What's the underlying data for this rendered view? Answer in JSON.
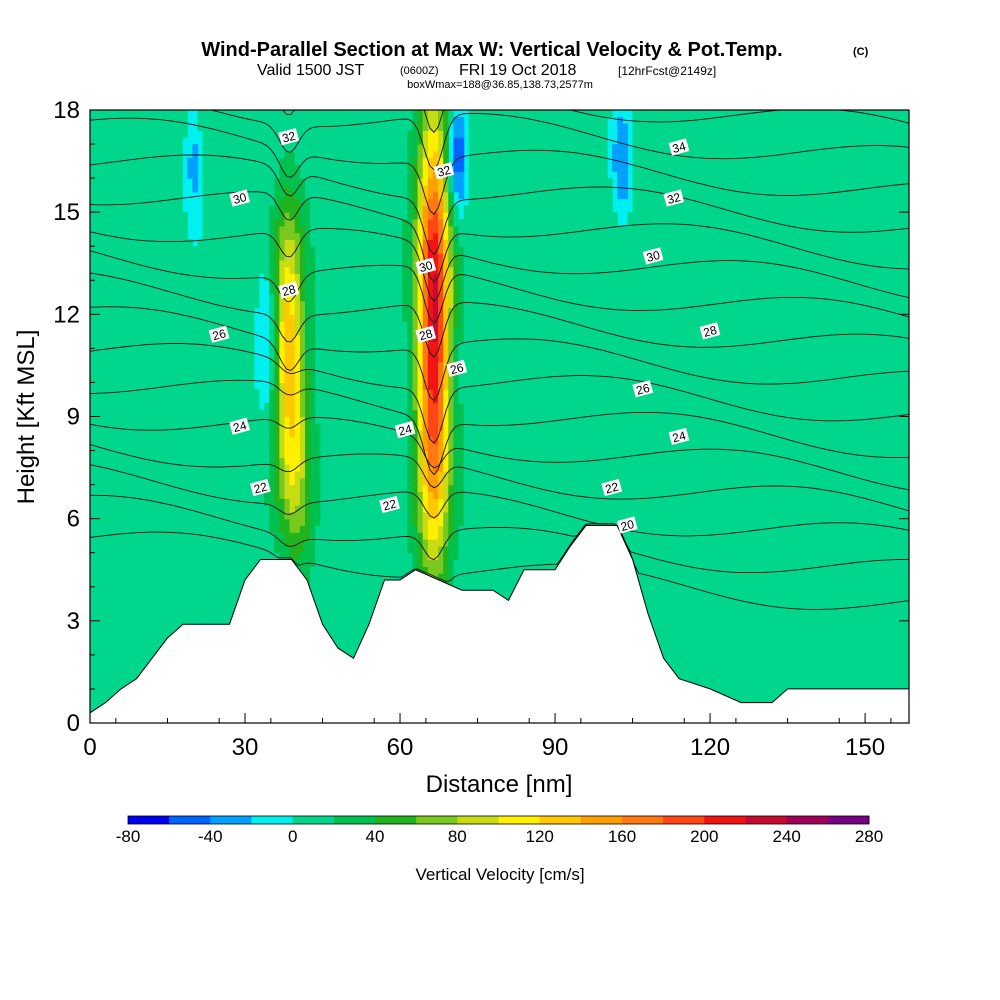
{
  "title": {
    "main": "Wind-Parallel Section at Max W: Vertical Velocity & Pot.Temp.",
    "copyright": "(C)",
    "valid_prefix": "Valid 1500 JST",
    "valid_utc": "(0600Z)",
    "valid_date": "FRI 19 Oct 2018",
    "forecast": "[12hrFcst@2149z]",
    "boxwmax": "boxWmax=188@36.85,138.73,2577m"
  },
  "chart_data": {
    "type": "heatmap",
    "xlabel": "Distance [nm]",
    "ylabel": "Height [Kft MSL]",
    "xlim": [
      0,
      158.5
    ],
    "ylim": [
      0,
      18
    ],
    "x_ticks": [
      0,
      30,
      60,
      90,
      120,
      150
    ],
    "y_ticks": [
      0,
      3,
      6,
      9,
      12,
      15,
      18
    ],
    "grid": false,
    "colorbar": {
      "label": "Vertical Velocity [cm/s]",
      "placement": "bottom",
      "min": -80,
      "max": 280,
      "step": 20,
      "tick_values": [
        -80,
        -40,
        0,
        40,
        80,
        120,
        160,
        200,
        240,
        280
      ],
      "colors": [
        "#0000f0",
        "#0064ff",
        "#00a0ff",
        "#00f0f0",
        "#00d68c",
        "#00c050",
        "#22b41e",
        "#78c81e",
        "#c8dc14",
        "#fff000",
        "#ffc800",
        "#ffa000",
        "#ff7814",
        "#ff4614",
        "#f01414",
        "#c80a32",
        "#a0005a",
        "#780082"
      ]
    },
    "background_value_range": [
      0,
      20
    ],
    "updraft_cores": [
      {
        "x_center": 38.5,
        "z_bottom": 7,
        "z_top": 14.8,
        "peak_w": 135
      },
      {
        "x_center": 66.5,
        "z_bottom": 5.2,
        "z_top": 18,
        "peak_w": 230
      },
      {
        "x_center": 40.5,
        "z_bottom": 4.2,
        "z_top": 10,
        "peak_w": 55
      }
    ],
    "downdraft_regions": [
      {
        "x_center": 20,
        "z_bottom": 15,
        "z_top": 18,
        "min_w": -30
      },
      {
        "x_center": 34,
        "z_bottom": 9,
        "z_top": 14,
        "min_w": -20
      },
      {
        "x_center": 71,
        "z_bottom": 15,
        "z_top": 18,
        "min_w": -60
      },
      {
        "x_center": 103,
        "z_bottom": 15,
        "z_top": 18,
        "min_w": -40
      }
    ],
    "terrain": [
      {
        "x": 0,
        "z": 0.3
      },
      {
        "x": 3,
        "z": 0.6
      },
      {
        "x": 6,
        "z": 1.0
      },
      {
        "x": 9,
        "z": 1.3
      },
      {
        "x": 12,
        "z": 1.9
      },
      {
        "x": 15,
        "z": 2.5
      },
      {
        "x": 18,
        "z": 2.9
      },
      {
        "x": 27,
        "z": 2.9
      },
      {
        "x": 30,
        "z": 4.2
      },
      {
        "x": 33,
        "z": 4.8
      },
      {
        "x": 39,
        "z": 4.8
      },
      {
        "x": 42,
        "z": 4.2
      },
      {
        "x": 45,
        "z": 2.9
      },
      {
        "x": 48,
        "z": 2.2
      },
      {
        "x": 51,
        "z": 1.9
      },
      {
        "x": 54,
        "z": 2.9
      },
      {
        "x": 57,
        "z": 4.2
      },
      {
        "x": 60,
        "z": 4.2
      },
      {
        "x": 63,
        "z": 4.5
      },
      {
        "x": 72,
        "z": 3.9
      },
      {
        "x": 78,
        "z": 3.9
      },
      {
        "x": 81,
        "z": 3.6
      },
      {
        "x": 84,
        "z": 4.5
      },
      {
        "x": 90,
        "z": 4.5
      },
      {
        "x": 93,
        "z": 5.2
      },
      {
        "x": 96,
        "z": 5.8
      },
      {
        "x": 102,
        "z": 5.8
      },
      {
        "x": 105,
        "z": 4.8
      },
      {
        "x": 108,
        "z": 3.2
      },
      {
        "x": 111,
        "z": 1.9
      },
      {
        "x": 114,
        "z": 1.3
      },
      {
        "x": 120,
        "z": 1.0
      },
      {
        "x": 126,
        "z": 0.6
      },
      {
        "x": 132,
        "z": 0.6
      },
      {
        "x": 135,
        "z": 1.0
      },
      {
        "x": 158.5,
        "z": 1.0
      }
    ],
    "theta_contours": [
      {
        "level": 20,
        "label": "20",
        "label_x": 104,
        "label_z": 5.8
      },
      {
        "level": 22,
        "label": "22",
        "label_x": 33,
        "label_z": 6.9
      },
      {
        "level": 22,
        "label": "22",
        "label_x": 58,
        "label_z": 6.4
      },
      {
        "level": 22,
        "label": "22",
        "label_x": 101,
        "label_z": 6.9
      },
      {
        "level": 24,
        "label": "24",
        "label_x": 29,
        "label_z": 8.7
      },
      {
        "level": 24,
        "label": "24",
        "label_x": 61,
        "label_z": 8.6
      },
      {
        "level": 24,
        "label": "24",
        "label_x": 114,
        "label_z": 8.4
      },
      {
        "level": 26,
        "label": "26",
        "label_x": 25,
        "label_z": 11.4
      },
      {
        "level": 26,
        "label": "26",
        "label_x": 71,
        "label_z": 10.4
      },
      {
        "level": 26,
        "label": "26",
        "label_x": 107,
        "label_z": 9.8
      },
      {
        "level": 28,
        "label": "28",
        "label_x": 38.5,
        "label_z": 12.7
      },
      {
        "level": 28,
        "label": "28",
        "label_x": 65,
        "label_z": 11.4
      },
      {
        "level": 28,
        "label": "28",
        "label_x": 120,
        "label_z": 11.5
      },
      {
        "level": 30,
        "label": "30",
        "label_x": 29,
        "label_z": 15.4
      },
      {
        "level": 30,
        "label": "30",
        "label_x": 65,
        "label_z": 13.4
      },
      {
        "level": 30,
        "label": "30",
        "label_x": 109,
        "label_z": 13.7
      },
      {
        "level": 32,
        "label": "32",
        "label_x": 38.5,
        "label_z": 17.2
      },
      {
        "level": 32,
        "label": "32",
        "label_x": 68.5,
        "label_z": 16.2
      },
      {
        "level": 32,
        "label": "32",
        "label_x": 113,
        "label_z": 15.4
      },
      {
        "level": 34,
        "label": "34",
        "label_x": 114,
        "label_z": 16.9
      }
    ]
  }
}
